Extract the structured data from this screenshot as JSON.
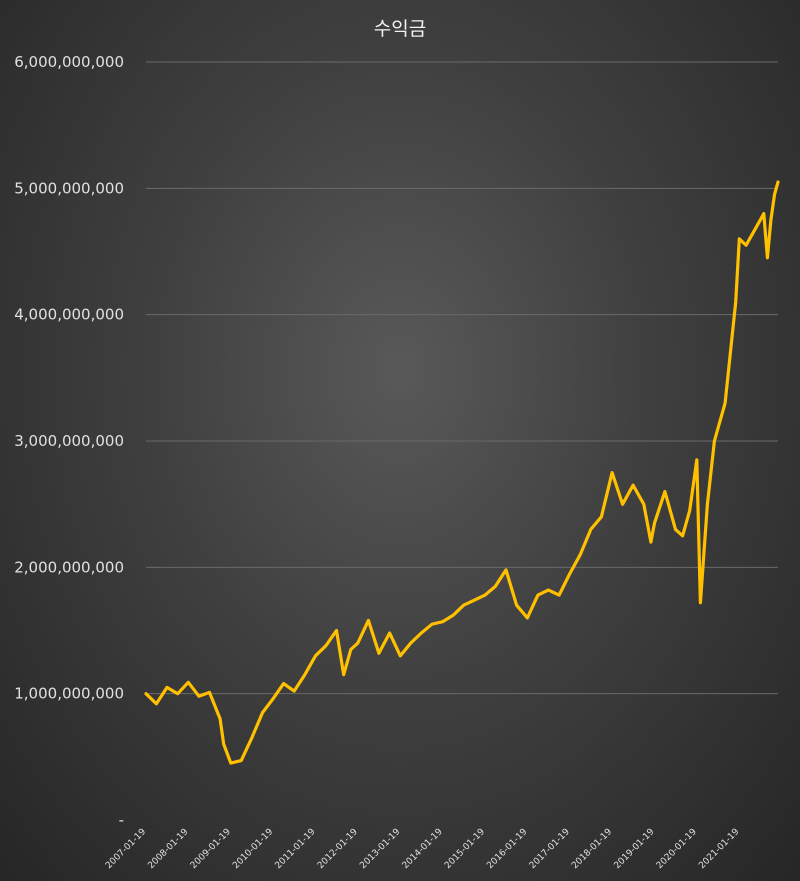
{
  "chart_data": {
    "type": "line",
    "title": "수익금",
    "xlabel": "",
    "ylabel": "",
    "ylim": [
      0,
      6000000000
    ],
    "grid": true,
    "legend": "none",
    "line_color": "#ffc000",
    "y_ticks": [
      {
        "value": 0,
        "label": "-"
      },
      {
        "value": 1000000000,
        "label": "1,000,000,000"
      },
      {
        "value": 2000000000,
        "label": "2,000,000,000"
      },
      {
        "value": 3000000000,
        "label": "3,000,000,000"
      },
      {
        "value": 4000000000,
        "label": "4,000,000,000"
      },
      {
        "value": 5000000000,
        "label": "5,000,000,000"
      },
      {
        "value": 6000000000,
        "label": "6,000,000,000"
      }
    ],
    "x_ticks": [
      "2007-01-19",
      "2008-01-19",
      "2009-01-19",
      "2010-01-19",
      "2011-01-19",
      "2012-01-19",
      "2013-01-19",
      "2014-01-19",
      "2015-01-19",
      "2016-01-19",
      "2017-01-19",
      "2018-01-19",
      "2019-01-19",
      "2020-01-19",
      "2021-01-19"
    ],
    "x": [
      "2007-01-19",
      "2007-04-19",
      "2007-07-19",
      "2007-10-19",
      "2008-01-19",
      "2008-04-19",
      "2008-07-19",
      "2008-10-19",
      "2008-11-19",
      "2009-01-19",
      "2009-04-19",
      "2009-07-19",
      "2009-10-19",
      "2010-01-19",
      "2010-04-19",
      "2010-07-19",
      "2010-10-19",
      "2011-01-19",
      "2011-04-19",
      "2011-07-19",
      "2011-09-19",
      "2011-11-19",
      "2012-01-19",
      "2012-04-19",
      "2012-07-19",
      "2012-10-19",
      "2013-01-19",
      "2013-04-19",
      "2013-07-19",
      "2013-10-19",
      "2014-01-19",
      "2014-04-19",
      "2014-07-19",
      "2014-10-19",
      "2015-01-19",
      "2015-04-19",
      "2015-07-19",
      "2015-10-19",
      "2016-01-19",
      "2016-04-19",
      "2016-07-19",
      "2016-10-19",
      "2017-01-19",
      "2017-04-19",
      "2017-07-19",
      "2017-10-19",
      "2018-01-19",
      "2018-04-19",
      "2018-07-19",
      "2018-10-19",
      "2018-12-19",
      "2019-01-19",
      "2019-04-19",
      "2019-07-19",
      "2019-09-19",
      "2019-11-19",
      "2020-01-19",
      "2020-02-19",
      "2020-03-19",
      "2020-04-19",
      "2020-06-19",
      "2020-09-19",
      "2020-12-19",
      "2021-01-19",
      "2021-03-19",
      "2021-06-19",
      "2021-08-19",
      "2021-09-19",
      "2021-10-19",
      "2021-11-19",
      "2021-12-19"
    ],
    "series": [
      {
        "values": [
          1000000000,
          920000000,
          1050000000,
          1000000000,
          1090000000,
          980000000,
          1010000000,
          800000000,
          600000000,
          450000000,
          470000000,
          650000000,
          850000000,
          960000000,
          1080000000,
          1020000000,
          1150000000,
          1300000000,
          1380000000,
          1500000000,
          1150000000,
          1350000000,
          1400000000,
          1580000000,
          1320000000,
          1480000000,
          1300000000,
          1400000000,
          1480000000,
          1550000000,
          1570000000,
          1620000000,
          1700000000,
          1740000000,
          1780000000,
          1850000000,
          1980000000,
          1700000000,
          1600000000,
          1780000000,
          1820000000,
          1780000000,
          1950000000,
          2100000000,
          2300000000,
          2400000000,
          2750000000,
          2500000000,
          2650000000,
          2500000000,
          2200000000,
          2350000000,
          2600000000,
          2300000000,
          2250000000,
          2450000000,
          2850000000,
          1720000000,
          2100000000,
          2500000000,
          3000000000,
          3300000000,
          4100000000,
          4600000000,
          4550000000,
          4700000000,
          4800000000,
          4450000000,
          4750000000,
          4950000000,
          5050000000
        ]
      }
    ]
  }
}
